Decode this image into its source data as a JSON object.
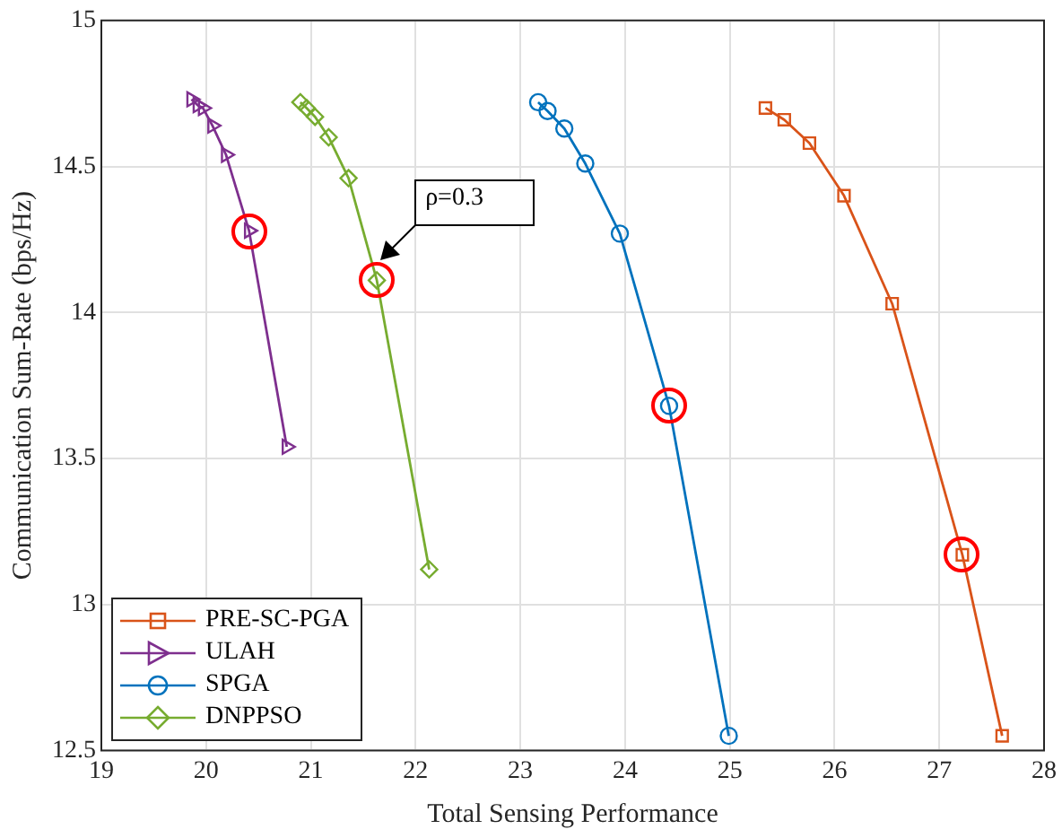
{
  "chart_data": {
    "type": "line",
    "xlabel": "Total Sensing Performance",
    "ylabel": "Communication Sum-Rate (bps/Hz)",
    "xlim": [
      19,
      28
    ],
    "xticks": [
      19,
      20,
      21,
      22,
      23,
      24,
      25,
      26,
      27,
      28
    ],
    "ylim": [
      12.5,
      15
    ],
    "yticks": [
      12.5,
      13,
      13.5,
      14,
      14.5,
      15
    ],
    "grid": true,
    "legend": "bottom left",
    "annotations": [
      "ρ=0.3"
    ],
    "series": [
      {
        "name": "PRE-SC-PGA",
        "color": "#d95319",
        "marker": "square",
        "x": [
          25.34,
          25.52,
          25.76,
          26.09,
          26.55,
          27.22,
          27.6
        ],
        "values": [
          14.7,
          14.66,
          14.58,
          14.4,
          14.03,
          13.17,
          12.55
        ]
      },
      {
        "name": "ULAH",
        "color": "#7e2f8e",
        "marker": "triangle",
        "x": [
          19.86,
          19.92,
          19.97,
          20.06,
          20.19,
          20.41,
          20.77
        ],
        "values": [
          14.73,
          14.71,
          14.7,
          14.64,
          14.54,
          14.28,
          13.54
        ]
      },
      {
        "name": "SPGA",
        "color": "#0072bd",
        "marker": "circle",
        "x": [
          23.17,
          23.26,
          23.42,
          23.62,
          23.95,
          24.42,
          24.99
        ],
        "values": [
          14.72,
          14.69,
          14.63,
          14.51,
          14.27,
          13.68,
          12.55
        ]
      },
      {
        "name": "DNPPSO",
        "color": "#77ac30",
        "marker": "diamond",
        "x": [
          20.9,
          20.96,
          21.04,
          21.17,
          21.36,
          21.63,
          22.13
        ],
        "values": [
          14.72,
          14.7,
          14.67,
          14.6,
          14.46,
          14.11,
          13.12
        ]
      }
    ]
  }
}
